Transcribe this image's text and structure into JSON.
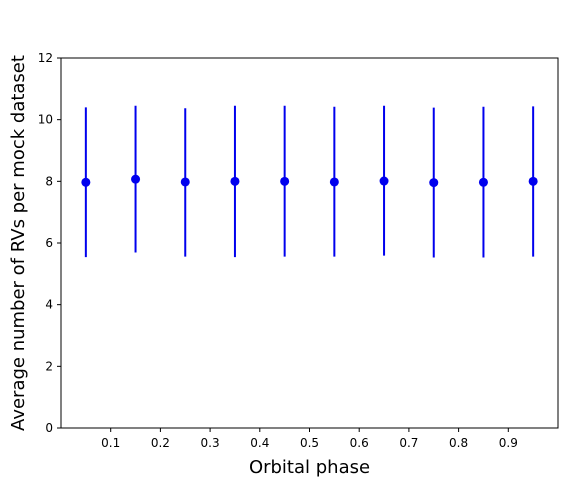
{
  "colors": {
    "series": "#0000ee",
    "axis": "#000000",
    "background": "#ffffff"
  },
  "chart_data": {
    "type": "scatter",
    "xlabel": "Orbital phase",
    "ylabel": "Average number of RVs per mock dataset",
    "xlim": [
      0.0,
      1.0
    ],
    "ylim": [
      0,
      12
    ],
    "xticks": [
      "0.1",
      "0.2",
      "0.3",
      "0.4",
      "0.5",
      "0.6",
      "0.7",
      "0.8",
      "0.9"
    ],
    "xtick_values": [
      0.1,
      0.2,
      0.3,
      0.4,
      0.5,
      0.6,
      0.7,
      0.8,
      0.9
    ],
    "yticks": [
      "0",
      "2",
      "4",
      "6",
      "8",
      "10",
      "12"
    ],
    "ytick_values": [
      0,
      2,
      4,
      6,
      8,
      10,
      12
    ],
    "grid": false,
    "legend": "none",
    "x": [
      0.05,
      0.15,
      0.25,
      0.35,
      0.45,
      0.55,
      0.65,
      0.75,
      0.85,
      0.95
    ],
    "y": [
      7.97,
      8.07,
      7.98,
      8.0,
      8.0,
      7.98,
      8.01,
      7.96,
      7.97,
      8.0
    ],
    "yerr_low": [
      5.54,
      5.69,
      5.56,
      5.54,
      5.56,
      5.56,
      5.59,
      5.53,
      5.53,
      5.56
    ],
    "yerr_high": [
      10.4,
      10.45,
      10.37,
      10.45,
      10.45,
      10.42,
      10.45,
      10.39,
      10.42,
      10.43
    ]
  }
}
